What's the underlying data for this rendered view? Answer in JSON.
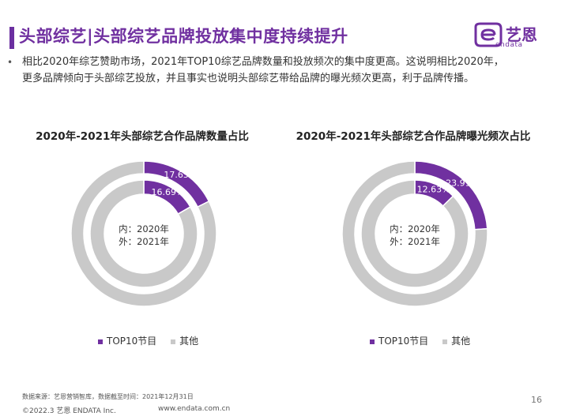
{
  "header": {
    "title": "头部综艺|头部综艺品牌投放集中度持续提升",
    "logo_text": "艺恩",
    "logo_sub": "endata",
    "brand_color": "#7030a0"
  },
  "bullet": {
    "line1": "相比2020年综艺赞助市场，2021年TOP10综艺品牌数量和投放频次的集中度更高。这说明相比2020年，",
    "line2": "更多品牌倾向于头部综艺投放，并且事实也说明头部综艺带给品牌的曝光频次更高，利于品牌传播。"
  },
  "chart_data": [
    {
      "type": "donut",
      "title": "2020年-2021年头部综艺合作品牌数量占比",
      "center_line1": "内：2020年",
      "center_line2": "外：2021年",
      "series": [
        {
          "ring": "inner",
          "values": [
            16.69,
            83.31
          ],
          "labels": [
            "16.69%",
            ""
          ]
        },
        {
          "ring": "outer",
          "values": [
            17.65,
            82.35
          ],
          "labels": [
            "17.65%",
            ""
          ]
        }
      ],
      "categories": [
        "TOP10节目",
        "其他"
      ],
      "colors": [
        "#7030a0",
        "#c9c9c9"
      ]
    },
    {
      "type": "donut",
      "title": "2020年-2021年头部综艺合作品牌曝光频次占比",
      "center_line1": "内：2020年",
      "center_line2": "外：2021年",
      "series": [
        {
          "ring": "inner",
          "values": [
            12.63,
            87.37
          ],
          "labels": [
            "12.63%",
            ""
          ]
        },
        {
          "ring": "outer",
          "values": [
            23.91,
            76.09
          ],
          "labels": [
            "23.91%",
            ""
          ]
        }
      ],
      "categories": [
        "TOP10节目",
        "其他"
      ],
      "colors": [
        "#7030a0",
        "#c9c9c9"
      ]
    }
  ],
  "legend": {
    "item1": "TOP10节目",
    "item2": "其他"
  },
  "footer": {
    "source": "数据来源：艺恩营销智库，数据截至时间：2021年12月31日",
    "copyright": "©2022.3 艺恩 ENDATA Inc.",
    "site": "www.endata.com.cn",
    "page": "16"
  }
}
